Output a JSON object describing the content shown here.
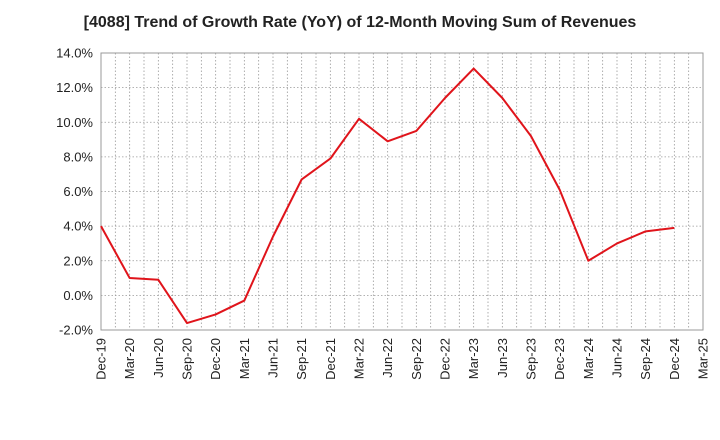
{
  "chart_data": {
    "type": "line",
    "title": "[4088]  Trend of Growth Rate (YoY) of 12-Month Moving Sum of Revenues",
    "xlabel": "",
    "ylabel": "",
    "ylim": [
      -2.0,
      14.0
    ],
    "y_ticks": [
      "14.0%",
      "12.0%",
      "10.0%",
      "8.0%",
      "6.0%",
      "4.0%",
      "2.0%",
      "0.0%",
      "-2.0%"
    ],
    "y_tick_values": [
      14,
      12,
      10,
      8,
      6,
      4,
      2,
      0,
      -2
    ],
    "categories": [
      "Dec-19",
      "Mar-20",
      "Jun-20",
      "Sep-20",
      "Dec-20",
      "Mar-21",
      "Jun-21",
      "Sep-21",
      "Dec-21",
      "Mar-22",
      "Jun-22",
      "Sep-22",
      "Dec-22",
      "Mar-23",
      "Jun-23",
      "Sep-23",
      "Dec-23",
      "Mar-24",
      "Jun-24",
      "Sep-24",
      "Dec-24",
      "Mar-25"
    ],
    "series": [
      {
        "color": "#e0141b",
        "values": [
          4.0,
          1.0,
          0.9,
          -1.6,
          -1.1,
          -0.3,
          3.4,
          6.7,
          7.9,
          10.2,
          8.9,
          9.5,
          11.4,
          13.1,
          11.4,
          9.2,
          6.1,
          2.0,
          3.0,
          3.7,
          3.9,
          null
        ]
      }
    ],
    "grid": true,
    "legend": "none",
    "colors": {
      "line": "#e0141b",
      "grid": "#999999",
      "axis": "#999999",
      "text": "#222222"
    }
  }
}
